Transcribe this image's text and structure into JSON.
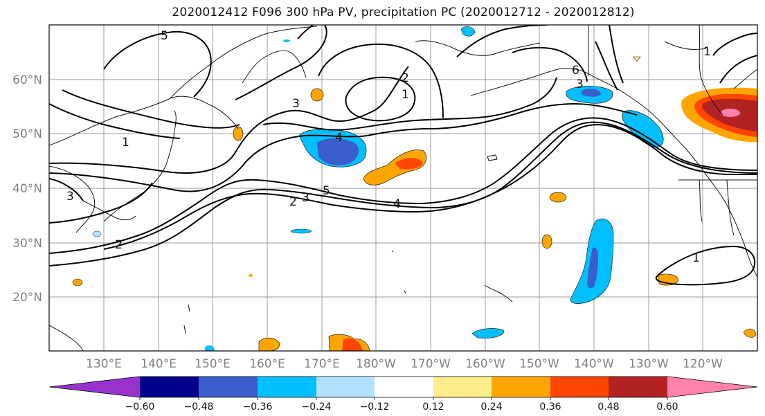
{
  "title": "2020012412 F096 300 hPa PV, precipitation PC (2020012712 - 2020012812)",
  "latitude_labels": [
    "60°N",
    "50°N",
    "40°N",
    "30°N",
    "20°N"
  ],
  "longitude_labels": [
    "130°E",
    "140°E",
    "150°E",
    "160°E",
    "170°E",
    "180°W",
    "170°W",
    "160°W",
    "150°W",
    "140°W",
    "130°W",
    "120°W"
  ],
  "contour_labels": [
    "5",
    "1",
    "3",
    "2",
    "1",
    "6",
    "4",
    "1",
    "5",
    "3",
    "2",
    "4",
    "3",
    "2",
    "1",
    "3"
  ],
  "colorbar": {
    "tick_labels": [
      "−0.60",
      "−0.48",
      "−0.36",
      "−0.24",
      "−0.12",
      "0.12",
      "0.24",
      "0.36",
      "0.48",
      "0.60"
    ],
    "colors": [
      "#9932cc",
      "#00008b",
      "#3a5fcd",
      "#00bfff",
      "#b0e2ff",
      "#ffffff",
      "#ffec8b",
      "#ffa500",
      "#ff4500",
      "#b22222",
      "#ff82ab"
    ]
  }
}
